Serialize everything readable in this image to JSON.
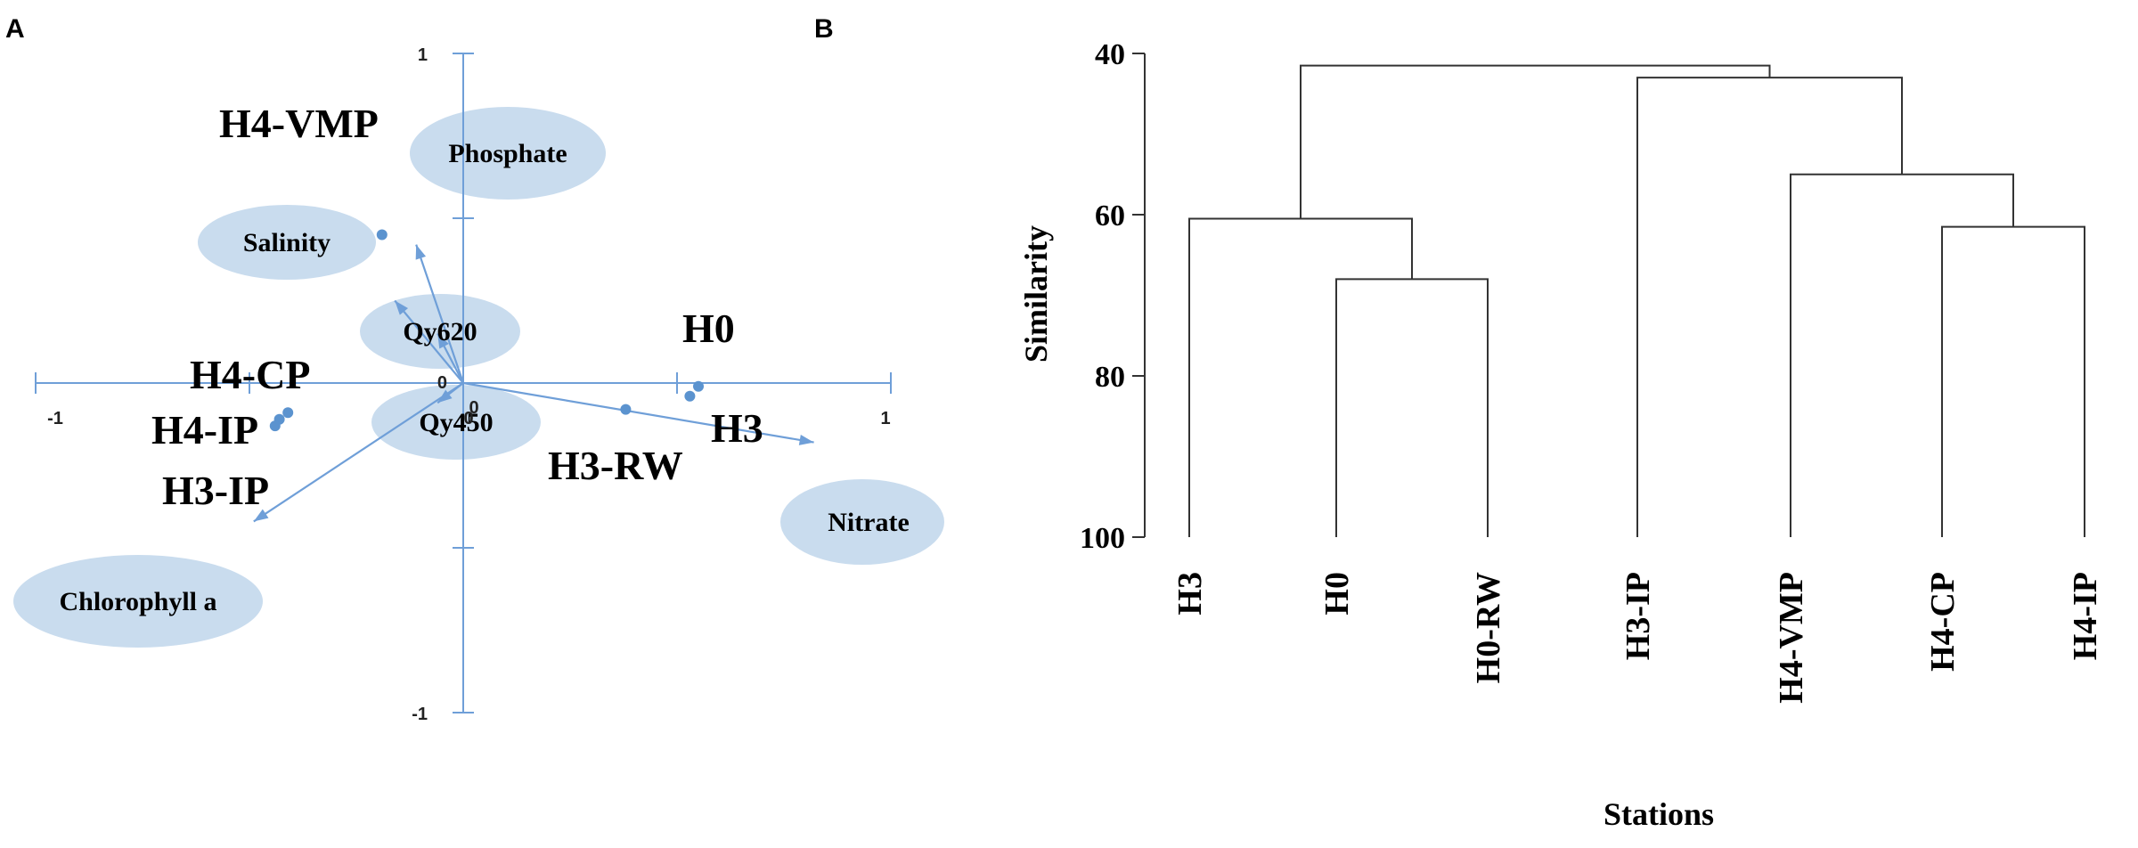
{
  "panels": [
    "A",
    "B"
  ],
  "colors": {
    "axis": "#6f9fd8",
    "point": "#5b93cf",
    "ellipse": "#c9dcee",
    "dendro_line": "#333333"
  },
  "chart_data": [
    {
      "type": "scatter",
      "title": "",
      "xlim": [
        -1,
        1
      ],
      "ylim": [
        -1,
        1
      ],
      "x_ticks": [
        "-1",
        "0",
        "1"
      ],
      "y_ticks": [
        "1",
        "-1"
      ],
      "origin_labels": [
        "0",
        "0"
      ],
      "stations": [
        {
          "name": "H4-VMP",
          "x": -0.19,
          "y": 0.45
        },
        {
          "name": "H0",
          "x": 0.55,
          "y": -0.01
        },
        {
          "name": "H3",
          "x": 0.53,
          "y": -0.04
        },
        {
          "name": "H3-RW",
          "x": 0.38,
          "y": -0.08
        },
        {
          "name": "H4-CP",
          "x": -0.41,
          "y": -0.09
        },
        {
          "name": "H4-IP",
          "x": -0.43,
          "y": -0.11
        },
        {
          "name": "H3-IP",
          "x": -0.44,
          "y": -0.13
        }
      ],
      "variables": [
        {
          "name": "Phosphate",
          "x": -0.11,
          "y": 0.42
        },
        {
          "name": "Salinity",
          "x": -0.16,
          "y": 0.25
        },
        {
          "name": "Qy620",
          "x": -0.06,
          "y": 0.15
        },
        {
          "name": "Qy450",
          "x": -0.06,
          "y": -0.06
        },
        {
          "name": "Nitrate",
          "x": 0.82,
          "y": -0.18
        },
        {
          "name": "Chlorophyll  a",
          "x": -0.49,
          "y": -0.42
        }
      ]
    },
    {
      "type": "dendrogram",
      "title": "",
      "ylabel": "Similarity",
      "xlabel": "Stations",
      "ylim": [
        40,
        100
      ],
      "y_ticks": [
        40,
        60,
        80,
        100
      ],
      "leaves": [
        "H3",
        "H0",
        "H0-RW",
        "H3-IP",
        "H4-VMP",
        "H4-CP",
        "H4-IP"
      ],
      "merges": [
        {
          "a": "H0",
          "b": "H0-RW",
          "similarity": 68
        },
        {
          "a": "H4-CP",
          "b": "H4-IP",
          "similarity": 61.5
        },
        {
          "a": "H4-VMP",
          "b": "(H4-CP, H4-IP)",
          "similarity": 55
        },
        {
          "a": "H3",
          "b": "(H0, H0-RW)",
          "similarity": 60.5
        },
        {
          "a": "H3-IP",
          "b": "(H4-VMP, H4-CP, H4-IP)",
          "similarity": 43
        },
        {
          "a": "(H3, H0, H0-RW)",
          "b": "(H3-IP, H4-VMP, H4-CP, H4-IP)",
          "similarity": 41.5
        }
      ]
    }
  ]
}
